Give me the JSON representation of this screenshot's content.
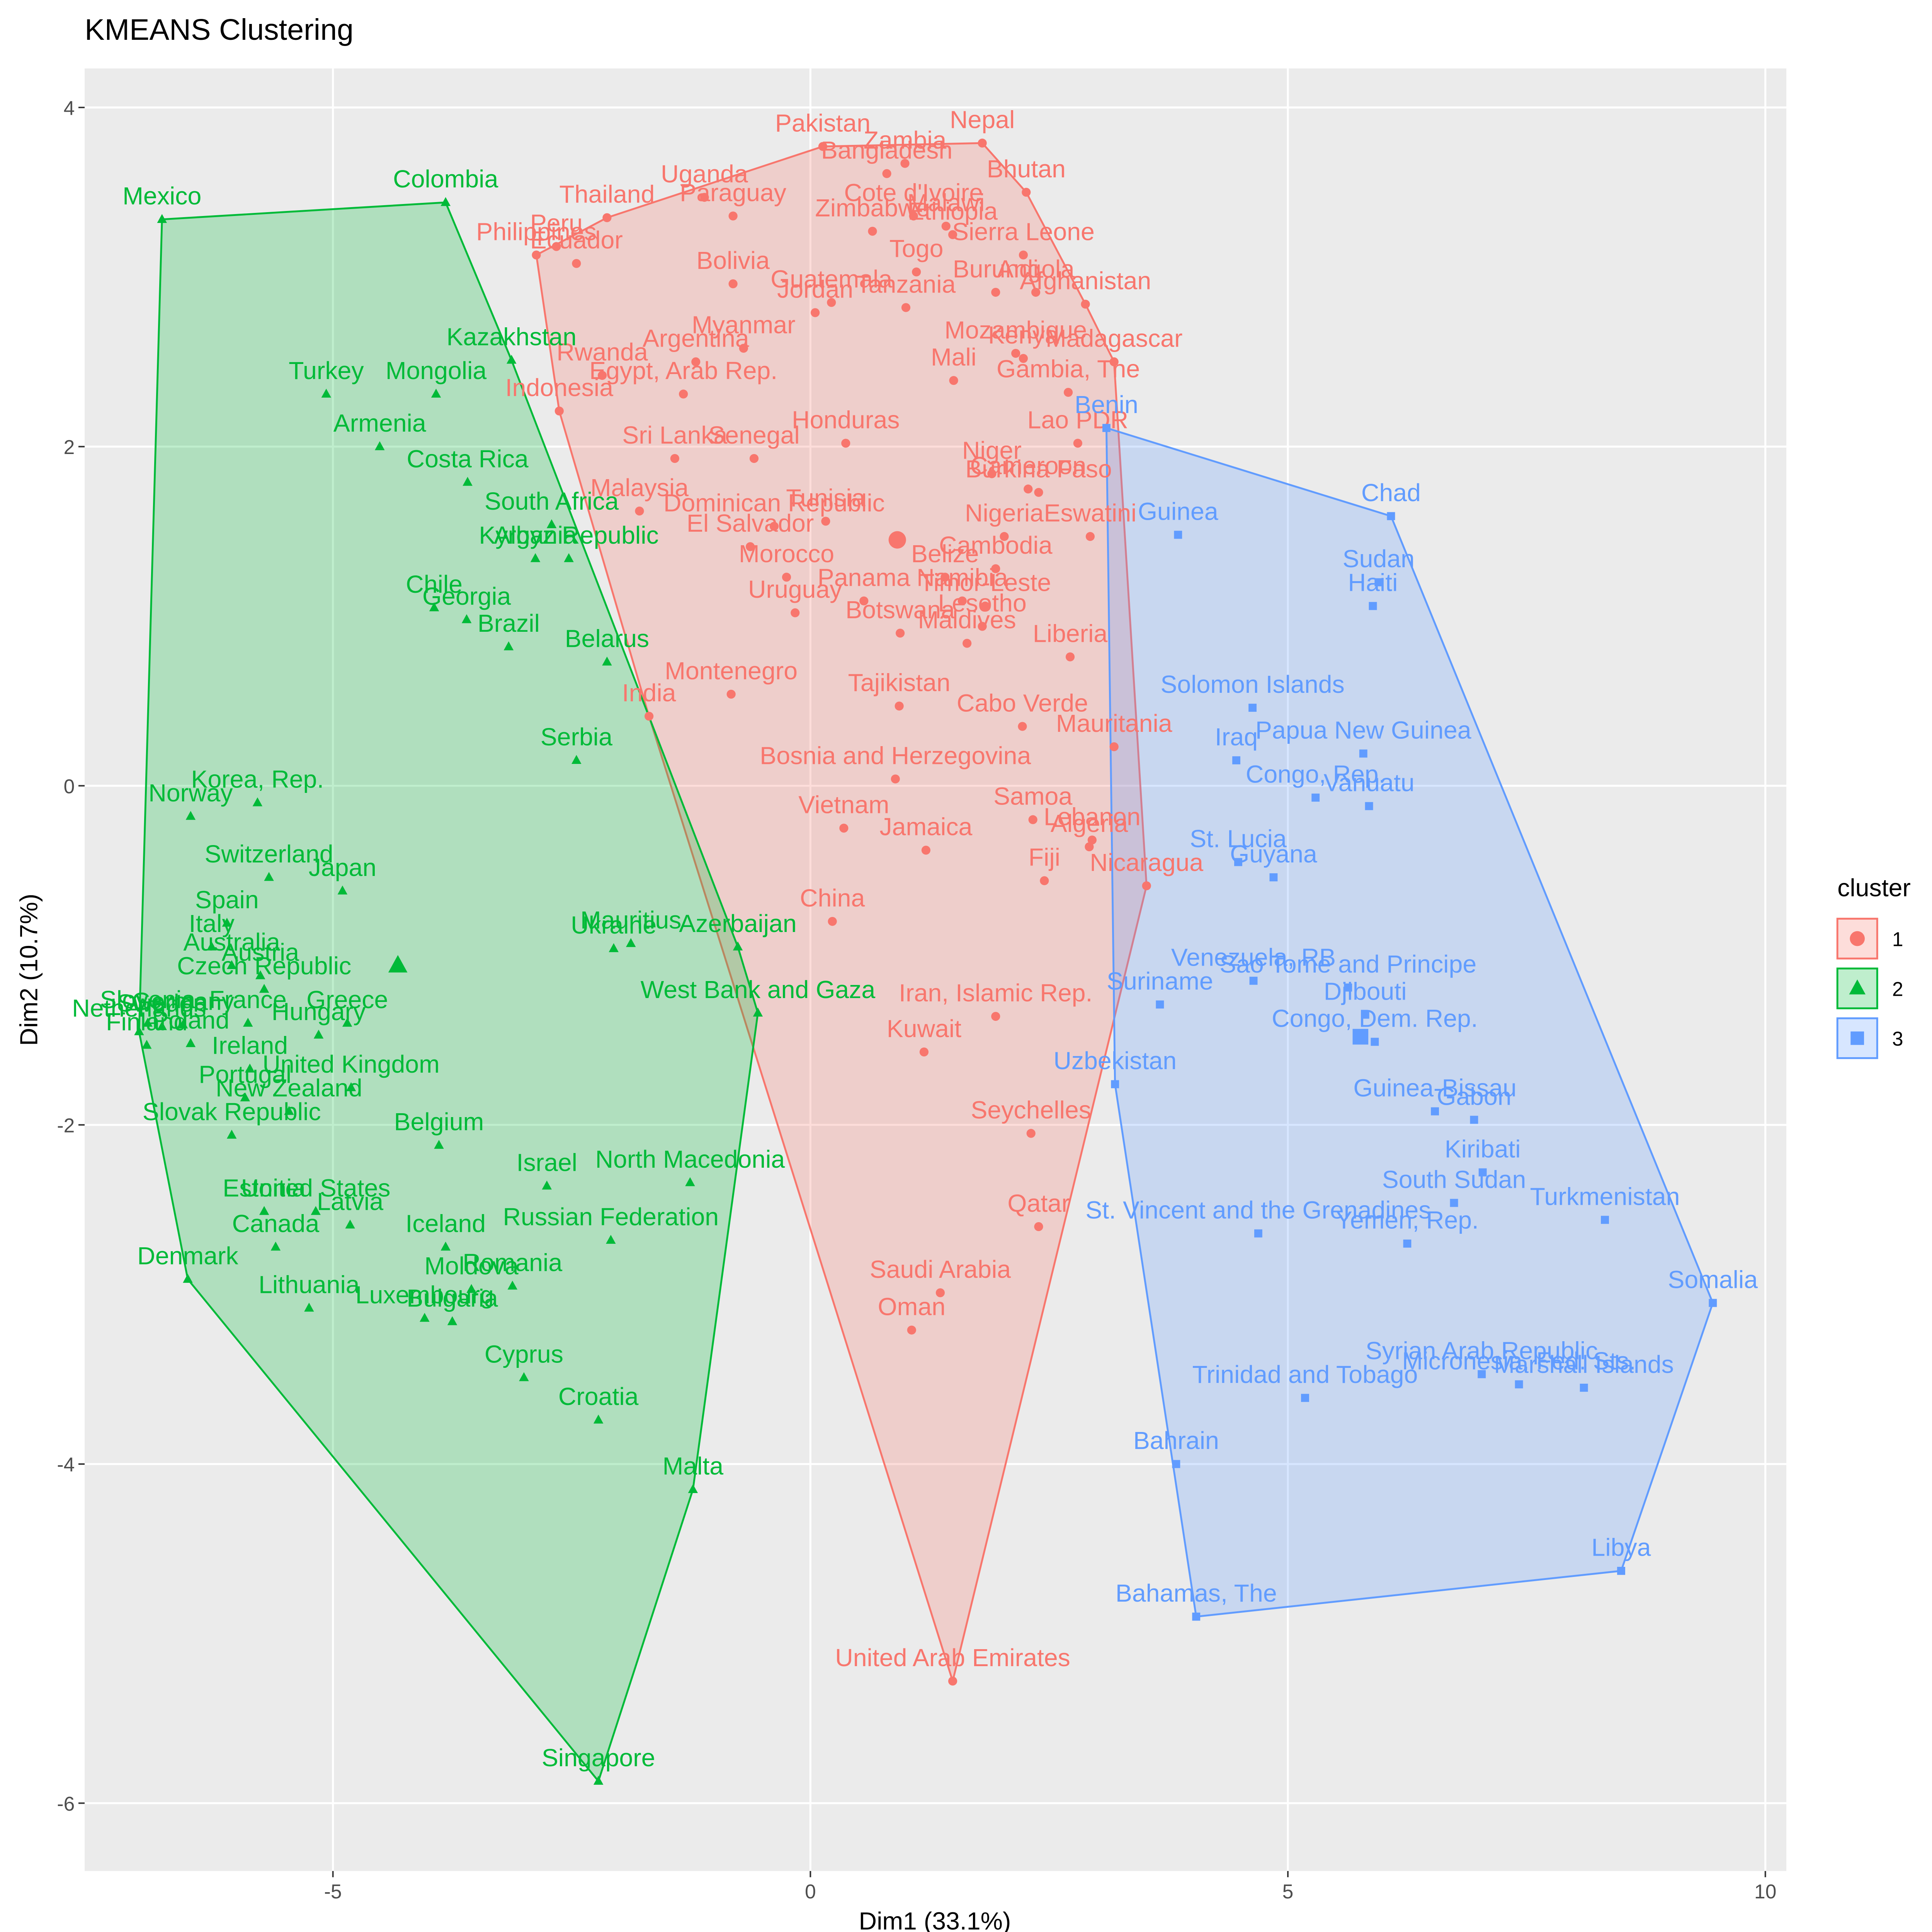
{
  "chart_data": {
    "type": "scatter",
    "title": "KMEANS Clustering",
    "xlabel": "Dim1 (33.1%)",
    "ylabel": "Dim2 (10.7%)",
    "xlim": [
      -7.6,
      10.22
    ],
    "ylim": [
      -6.4,
      4.23
    ],
    "xticks": [
      -5,
      0,
      5,
      10
    ],
    "yticks": [
      -6,
      -4,
      -2,
      0,
      2,
      4
    ],
    "grid": true,
    "legend_title": "cluster",
    "legend_position": "right",
    "series": [
      {
        "name": "1",
        "color": "#f8766d",
        "shape": "circle",
        "center": [
          0.91,
          1.45
        ],
        "labels": [
          "Pakistan",
          "Nepal",
          "Zambia",
          "Bangladesh",
          "Bhutan",
          "Uganda",
          "Thailand",
          "Paraguay",
          "Cote d'Ivoire",
          "Zimbabwe",
          "Malawi",
          "Ethiopia",
          "Peru",
          "Philippines",
          "Ecuador",
          "Sierra Leone",
          "Bolivia",
          "Togo",
          "Guatemala",
          "Jordan",
          "Tanzania",
          "Burundi",
          "Angola",
          "Afghanistan",
          "Myanmar",
          "Argentina",
          "Rwanda",
          "Mozambique",
          "Kenya",
          "Madagascar",
          "Egypt, Arab Rep.",
          "Mali",
          "Gambia, The",
          "Indonesia",
          "Honduras",
          "Lao PDR",
          "Sri Lanka",
          "Senegal",
          "Niger",
          "Cameroon",
          "Burkina Faso",
          "Malaysia",
          "Dominican Republic",
          "Tunisia",
          "Nigeria",
          "Eswatini",
          "El Salvador",
          "Cambodia",
          "Morocco",
          "Belize",
          "Panama",
          "Namibia",
          "Timor-Leste",
          "Uruguay",
          "Botswana",
          "Lesotho",
          "Maldives",
          "Liberia",
          "Montenegro",
          "India",
          "Tajikistan",
          "Cabo Verde",
          "Mauritania",
          "Bosnia and Herzegovina",
          "Samoa",
          "Vietnam",
          "Jamaica",
          "Lebanon",
          "Algeria",
          "Fiji",
          "Nicaragua",
          "China",
          "Iran, Islamic Rep.",
          "Kuwait",
          "Seychelles",
          "Qatar",
          "Saudi Arabia",
          "Oman",
          "United Arab Emirates"
        ],
        "x": [
          0.13,
          1.8,
          0.99,
          0.8,
          2.26,
          -1.11,
          -2.13,
          -0.81,
          1.08,
          0.65,
          1.42,
          1.49,
          -2.66,
          -2.87,
          -2.45,
          2.23,
          -0.81,
          1.11,
          0.22,
          0.05,
          1.0,
          1.94,
          2.36,
          2.88,
          -0.7,
          -1.2,
          -2.18,
          2.15,
          2.23,
          3.18,
          -1.33,
          1.5,
          2.7,
          -2.63,
          0.37,
          2.8,
          -1.42,
          -0.59,
          1.9,
          2.28,
          2.39,
          -1.79,
          -0.38,
          0.16,
          2.03,
          2.93,
          -0.63,
          1.94,
          -0.25,
          1.41,
          0.56,
          1.59,
          1.83,
          -0.16,
          0.94,
          1.8,
          1.64,
          2.72,
          -0.83,
          -1.69,
          0.93,
          2.22,
          3.18,
          0.89,
          2.33,
          0.35,
          1.21,
          2.95,
          2.92,
          2.45,
          3.52,
          0.23,
          1.94,
          1.19,
          2.31,
          2.39,
          1.36,
          1.06,
          1.49
        ],
        "values": [
          3.77,
          3.79,
          3.67,
          3.61,
          3.5,
          3.47,
          3.35,
          3.36,
          3.36,
          3.27,
          3.3,
          3.25,
          3.18,
          3.13,
          3.08,
          3.13,
          2.96,
          3.03,
          2.85,
          2.79,
          2.82,
          2.91,
          2.91,
          2.84,
          2.58,
          2.5,
          2.42,
          2.55,
          2.52,
          2.5,
          2.31,
          2.39,
          2.32,
          2.21,
          2.02,
          2.02,
          1.93,
          1.93,
          1.84,
          1.75,
          1.73,
          1.62,
          1.53,
          1.56,
          1.47,
          1.47,
          1.41,
          1.28,
          1.23,
          1.23,
          1.09,
          1.09,
          1.06,
          1.02,
          0.9,
          0.94,
          0.84,
          0.76,
          0.54,
          0.41,
          0.47,
          0.35,
          0.23,
          0.04,
          -0.2,
          -0.25,
          -0.38,
          -0.32,
          -0.36,
          -0.56,
          -0.59,
          -0.8,
          -1.36,
          -1.57,
          -2.05,
          -2.6,
          -2.99,
          -3.21,
          -5.28
        ]
      },
      {
        "name": "2",
        "color": "#00ba38",
        "shape": "triangle",
        "center": [
          -4.32,
          -1.06
        ],
        "labels": [
          "Mexico",
          "Colombia",
          "Kazakhstan",
          "Turkey",
          "Mongolia",
          "Armenia",
          "Costa Rica",
          "South Africa",
          "Albania",
          "Kyrgyz Republic",
          "Chile",
          "Georgia",
          "Brazil",
          "Belarus",
          "Serbia",
          "Korea, Rep.",
          "Norway",
          "Switzerland",
          "Japan",
          "Spain",
          "Italy",
          "Australia",
          "Austria",
          "Czech Republic",
          "Greece",
          "Slovenia",
          "Germany",
          "France",
          "Netherlands",
          "Sweden",
          "Finland",
          "Poland",
          "Hungary",
          "Ireland",
          "United Kingdom",
          "Portugal",
          "New Zealand",
          "Slovak Republic",
          "Belgium",
          "Ukraine",
          "Mauritius",
          "Azerbaijan",
          "West Bank and Gaza",
          "Israel",
          "North Macedonia",
          "United States",
          "Estonia",
          "Latvia",
          "Canada",
          "Russian Federation",
          "Iceland",
          "Denmark",
          "Romania",
          "Moldova",
          "Lithuania",
          "Luxembourg",
          "Bulgaria",
          "Cyprus",
          "Croatia",
          "Malta",
          "Singapore"
        ],
        "x": [
          -6.79,
          -3.82,
          -3.13,
          -5.07,
          -3.92,
          -4.51,
          -3.59,
          -2.71,
          -2.88,
          -2.53,
          -3.94,
          -3.6,
          -3.16,
          -2.13,
          -2.45,
          -5.79,
          -6.49,
          -5.67,
          -4.9,
          -6.11,
          -6.27,
          -6.06,
          -5.76,
          -5.72,
          -4.85,
          -6.94,
          -6.57,
          -5.89,
          -7.03,
          -6.79,
          -6.95,
          -6.49,
          -5.15,
          -5.87,
          -4.81,
          -5.92,
          -5.46,
          -6.06,
          -3.89,
          -2.06,
          -1.88,
          -0.76,
          -0.55,
          -2.76,
          -1.26,
          -5.18,
          -5.72,
          -4.82,
          -5.6,
          -2.09,
          -3.82,
          -6.52,
          -3.12,
          -3.55,
          -5.25,
          -4.04,
          -3.75,
          -3.0,
          -2.22,
          -1.23,
          -2.22
        ],
        "values": [
          3.34,
          3.44,
          2.51,
          2.31,
          2.31,
          2.0,
          1.79,
          1.54,
          1.34,
          1.34,
          1.05,
          0.98,
          0.82,
          0.73,
          0.15,
          -0.1,
          -0.18,
          -0.54,
          -0.62,
          -0.81,
          -0.95,
          -1.06,
          -1.12,
          -1.2,
          -1.4,
          -1.4,
          -1.41,
          -1.4,
          -1.45,
          -1.42,
          -1.53,
          -1.52,
          -1.47,
          -1.67,
          -1.78,
          -1.84,
          -1.92,
          -2.06,
          -2.12,
          -0.96,
          -0.93,
          -0.95,
          -1.34,
          -2.36,
          -2.34,
          -2.51,
          -2.51,
          -2.59,
          -2.72,
          -2.68,
          -2.72,
          -2.91,
          -2.95,
          -2.97,
          -3.08,
          -3.14,
          -3.16,
          -3.49,
          -3.74,
          -4.15,
          -5.87
        ]
      },
      {
        "name": "3",
        "color": "#619cff",
        "shape": "square",
        "center": [
          5.76,
          -1.48
        ],
        "labels": [
          "Benin",
          "Chad",
          "Guinea",
          "Sudan",
          "Haiti",
          "Solomon Islands",
          "Papua New Guinea",
          "Iraq",
          "Congo, Rep.",
          "Vanuatu",
          "St. Lucia",
          "Guyana",
          "Venezuela, RB",
          "Sao Tome and Principe",
          "Suriname",
          "Djibouti",
          "Congo, Dem. Rep.",
          "Uzbekistan",
          "Guinea-Bissau",
          "Gabon",
          "Kiribati",
          "South Sudan",
          "St. Vincent and the Grenadines",
          "Yemen, Rep.",
          "Turkmenistan",
          "Somalia",
          "Syrian Arab Republic",
          "Micronesia, Fed. Sts.",
          "Marshall Islands",
          "Trinidad and Tobago",
          "Bahrain",
          "Libya",
          "Bahamas, The"
        ],
        "x": [
          3.1,
          6.08,
          3.85,
          5.95,
          5.89,
          4.63,
          5.79,
          4.46,
          5.29,
          5.85,
          4.48,
          4.85,
          4.64,
          5.63,
          3.66,
          5.81,
          5.91,
          3.19,
          6.54,
          6.95,
          7.04,
          6.74,
          4.69,
          6.25,
          8.32,
          9.45,
          7.03,
          7.42,
          8.1,
          5.18,
          3.83,
          8.49,
          4.04
        ],
        "values": [
          2.11,
          1.59,
          1.48,
          1.2,
          1.06,
          0.46,
          0.19,
          0.15,
          -0.07,
          -0.12,
          -0.45,
          -0.54,
          -1.15,
          -1.19,
          -1.29,
          -1.35,
          -1.51,
          -1.76,
          -1.92,
          -1.97,
          -2.28,
          -2.46,
          -2.64,
          -2.7,
          -2.56,
          -3.05,
          -3.47,
          -3.53,
          -3.55,
          -3.61,
          -4.0,
          -4.63,
          -4.9
        ]
      }
    ]
  }
}
